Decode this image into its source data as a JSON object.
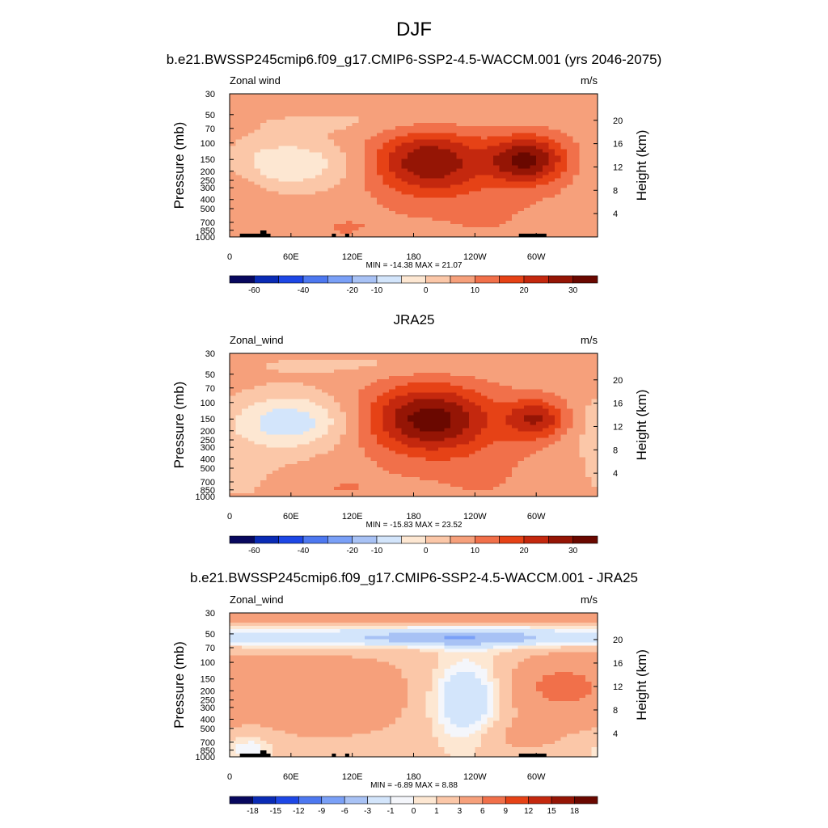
{
  "title": "DJF",
  "chart_data": [
    {
      "type": "heatmap",
      "title": "b.e21.BWSSP245cmip6.f09_g17.CMIP6-SSP2-4.5-WACCM.001 (yrs 2046-2075)",
      "left_label": "Zonal wind",
      "right_label": "m/s",
      "ylabel": "Pressure (mb)",
      "ylabel_right": "Height (km)",
      "x_ticks": [
        "0",
        "60E",
        "120E",
        "180",
        "120W",
        "60W"
      ],
      "y_ticks": [
        "30",
        "50",
        "70",
        "100",
        "150",
        "200",
        "250",
        "300",
        "400",
        "500",
        "700",
        "850",
        "1000"
      ],
      "y_right_ticks": [
        "4",
        "8",
        "12",
        "16",
        "20"
      ],
      "stats": "MIN = -14.38  MAX =  21.07",
      "colorbar_labels": [
        "-60",
        "-40",
        "-20",
        "-10",
        "0",
        "10",
        "20",
        "30"
      ],
      "topography": true,
      "features": [
        {
          "lon": 55,
          "p": 170,
          "sl": 0.12,
          "sd": 0.12,
          "amp": -12
        },
        {
          "lon": 195,
          "p": 160,
          "sl": 0.11,
          "sd": 0.16,
          "amp": 22
        },
        {
          "lon": 290,
          "p": 150,
          "sl": 0.07,
          "sd": 0.12,
          "amp": 23
        },
        {
          "lon": 255,
          "p": 600,
          "sl": 0.15,
          "sd": 0.3,
          "amp": 3
        },
        {
          "lon": 110,
          "p": 800,
          "sl": 0.12,
          "sd": 0.12,
          "amp": 3
        },
        {
          "lon": 140,
          "p": 60,
          "sl": 0.25,
          "sd": 0.06,
          "amp": -3
        },
        {
          "lon": 330,
          "p": 150,
          "sl": 0.05,
          "sd": 0.12,
          "amp": 3
        },
        {
          "lon": 15,
          "p": 300,
          "sl": 0.05,
          "sd": 0.15,
          "amp": 4
        }
      ]
    },
    {
      "type": "heatmap",
      "title": "JRA25",
      "left_label": "Zonal_wind",
      "right_label": "m/s",
      "ylabel": "Pressure (mb)",
      "ylabel_right": "Height (km)",
      "x_ticks": [
        "0",
        "60E",
        "120E",
        "180",
        "120W",
        "60W"
      ],
      "y_ticks": [
        "30",
        "50",
        "70",
        "100",
        "150",
        "200",
        "250",
        "300",
        "400",
        "500",
        "700",
        "850",
        "1000"
      ],
      "y_right_ticks": [
        "4",
        "8",
        "12",
        "16",
        "20"
      ],
      "stats": "MIN = -15.83  MAX =  23.52",
      "colorbar_labels": [
        "-60",
        "-40",
        "-20",
        "-10",
        "0",
        "10",
        "20",
        "30"
      ],
      "topography": false,
      "features": [
        {
          "lon": 60,
          "p": 160,
          "sl": 0.11,
          "sd": 0.13,
          "amp": -15
        },
        {
          "lon": 195,
          "p": 150,
          "sl": 0.12,
          "sd": 0.17,
          "amp": 25
        },
        {
          "lon": 300,
          "p": 150,
          "sl": 0.06,
          "sd": 0.1,
          "amp": 17
        },
        {
          "lon": 250,
          "p": 600,
          "sl": 0.15,
          "sd": 0.3,
          "amp": 3
        },
        {
          "lon": 110,
          "p": 800,
          "sl": 0.1,
          "sd": 0.1,
          "amp": 3
        },
        {
          "lon": 10,
          "p": 500,
          "sl": 0.1,
          "sd": 0.25,
          "amp": -3
        },
        {
          "lon": 140,
          "p": 40,
          "sl": 0.3,
          "sd": 0.06,
          "amp": -3
        }
      ]
    },
    {
      "type": "heatmap",
      "title": "b.e21.BWSSP245cmip6.f09_g17.CMIP6-SSP2-4.5-WACCM.001 - JRA25",
      "left_label": "Zonal_wind",
      "right_label": "m/s",
      "ylabel": "Pressure (mb)",
      "ylabel_right": "Height (km)",
      "x_ticks": [
        "0",
        "60E",
        "120E",
        "180",
        "120W",
        "60W"
      ],
      "y_ticks": [
        "30",
        "50",
        "70",
        "100",
        "150",
        "200",
        "250",
        "300",
        "400",
        "500",
        "700",
        "850",
        "1000"
      ],
      "y_right_ticks": [
        "4",
        "8",
        "12",
        "16",
        "20"
      ],
      "stats": "MIN =  -6.89  MAX =   8.88",
      "colorbar_labels": [
        "-18",
        "-15",
        "-12",
        "-9",
        "-6",
        "-3",
        "-1",
        "0",
        "1",
        "3",
        "6",
        "9",
        "12",
        "15",
        "18"
      ],
      "topography": true,
      "features": [
        {
          "lon": 180,
          "p": 33,
          "sl": 0.8,
          "sd": 0.03,
          "amp": 4.5
        },
        {
          "lon": 180,
          "p": 55,
          "sl": 0.8,
          "sd": 0.05,
          "amp": -5
        },
        {
          "lon": 220,
          "p": 55,
          "sl": 0.12,
          "sd": 0.03,
          "amp": -2.5
        },
        {
          "lon": 80,
          "p": 220,
          "sl": 0.3,
          "sd": 0.28,
          "amp": 3.2
        },
        {
          "lon": 230,
          "p": 250,
          "sl": 0.07,
          "sd": 0.2,
          "amp": -5.5
        },
        {
          "lon": 320,
          "p": 180,
          "sl": 0.1,
          "sd": 0.15,
          "amp": 4
        },
        {
          "lon": 280,
          "p": 600,
          "sl": 0.08,
          "sd": 0.1,
          "amp": 2
        },
        {
          "lon": 20,
          "p": 800,
          "sl": 0.05,
          "sd": 0.08,
          "amp": -3
        }
      ]
    }
  ]
}
